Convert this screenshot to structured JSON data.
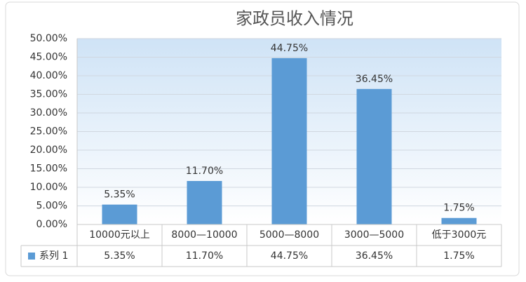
{
  "chart_data": {
    "type": "bar",
    "title": "家政员收入情况",
    "categories": [
      "10000元以上",
      "8000—10000",
      "5000—8000",
      "3000—5000",
      "低于3000元"
    ],
    "series": [
      {
        "name": "系列 1",
        "color": "#5b9bd5",
        "values": [
          5.35,
          11.7,
          44.75,
          36.45,
          1.75
        ],
        "value_labels": [
          "5.35%",
          "11.70%",
          "44.75%",
          "36.45%",
          "1.75%"
        ]
      }
    ],
    "ylim": [
      0,
      50
    ],
    "yticks": [
      {
        "value": 0,
        "label": "0.00%"
      },
      {
        "value": 5,
        "label": "5.00%"
      },
      {
        "value": 10,
        "label": "10.00%"
      },
      {
        "value": 15,
        "label": "15.00%"
      },
      {
        "value": 20,
        "label": "20.00%"
      },
      {
        "value": 25,
        "label": "25.00%"
      },
      {
        "value": 30,
        "label": "30.00%"
      },
      {
        "value": 35,
        "label": "35.00%"
      },
      {
        "value": 40,
        "label": "40.00%"
      },
      {
        "value": 45,
        "label": "45.00%"
      },
      {
        "value": 50,
        "label": "50.00%"
      }
    ],
    "grid": true,
    "data_table": true
  }
}
